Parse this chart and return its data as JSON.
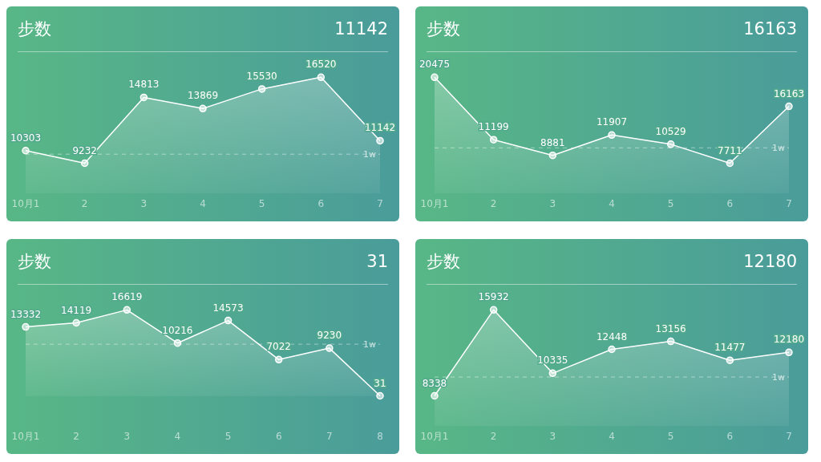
{
  "chart_data": [
    {
      "type": "area",
      "title": "步数",
      "annotations": [
        "11142"
      ],
      "categories": [
        "10月1",
        "2",
        "3",
        "4",
        "5",
        "6",
        "7"
      ],
      "values": [
        10303,
        9232,
        14813,
        13869,
        15530,
        16520,
        11142
      ],
      "color": "#ffffff",
      "data_labels": true,
      "marker": "circle",
      "ref_lines": [
        {
          "axis": "y",
          "value": 10000,
          "label": "1w",
          "line_style": "dashed"
        }
      ]
    },
    {
      "type": "area",
      "title": "步数",
      "annotations": [
        "16163"
      ],
      "categories": [
        "10月1",
        "2",
        "3",
        "4",
        "5",
        "6",
        "7"
      ],
      "values": [
        20475,
        11199,
        8881,
        11907,
        10529,
        7711,
        16163
      ],
      "color": "#ffffff",
      "data_labels": true,
      "marker": "circle",
      "ref_lines": [
        {
          "axis": "y",
          "value": 10000,
          "label": "1w",
          "line_style": "dashed"
        }
      ]
    },
    {
      "type": "area",
      "title": "步数",
      "annotations": [
        "31"
      ],
      "categories": [
        "10月1",
        "2",
        "3",
        "4",
        "5",
        "6",
        "7",
        "8"
      ],
      "values": [
        13332,
        14119,
        16619,
        10216,
        14573,
        7022,
        9230,
        31
      ],
      "color": "#ffffff",
      "data_labels": true,
      "marker": "circle",
      "ref_lines": [
        {
          "axis": "y",
          "value": 10000,
          "label": "1w",
          "line_style": "dashed"
        }
      ]
    },
    {
      "type": "area",
      "title": "步数",
      "annotations": [
        "12180"
      ],
      "categories": [
        "10月1",
        "2",
        "3",
        "4",
        "5",
        "6",
        "7"
      ],
      "values": [
        8338,
        15932,
        10335,
        12448,
        13156,
        11477,
        12180
      ],
      "color": "#ffffff",
      "data_labels": true,
      "marker": "circle",
      "ref_lines": [
        {
          "axis": "y",
          "value": 10000,
          "label": "1w",
          "line_style": "dashed"
        }
      ]
    }
  ]
}
